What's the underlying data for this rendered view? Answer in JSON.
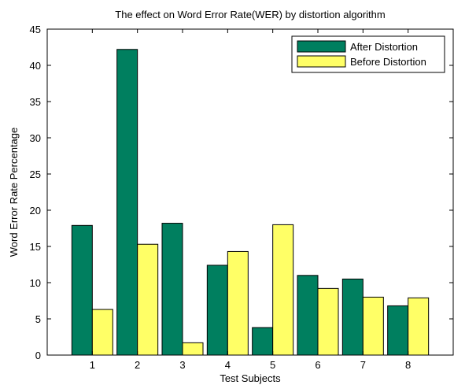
{
  "chart_data": {
    "type": "bar",
    "title": "The effect on Word Error Rate(WER) by distortion algorithm",
    "xlabel": "Test Subjects",
    "ylabel": "Word Error Rate Percentage",
    "categories": [
      "1",
      "2",
      "3",
      "4",
      "5",
      "6",
      "7",
      "8"
    ],
    "ylim": [
      0,
      45
    ],
    "yticks": [
      "0",
      "5",
      "10",
      "15",
      "20",
      "25",
      "30",
      "35",
      "40",
      "45"
    ],
    "grid": false,
    "legend_position": "top-right",
    "series": [
      {
        "name": "After Distortion",
        "color": "#007F5F",
        "values": [
          17.9,
          42.2,
          18.2,
          12.4,
          3.8,
          11.0,
          10.5,
          6.8
        ]
      },
      {
        "name": "Before Distortion",
        "color": "#FFFF66",
        "values": [
          6.3,
          15.3,
          1.7,
          14.3,
          18.0,
          9.2,
          8.0,
          7.9
        ]
      }
    ]
  }
}
